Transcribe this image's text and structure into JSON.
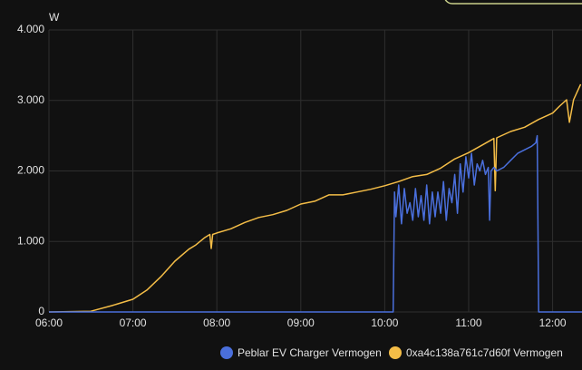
{
  "chart_data": {
    "type": "line",
    "y_unit": "W",
    "xlim": [
      "06:00",
      "12:21"
    ],
    "xticks": [
      "06:00",
      "07:00",
      "08:00",
      "09:00",
      "10:00",
      "11:00",
      "12:00"
    ],
    "ylim": [
      0,
      4000
    ],
    "yticks": [
      0,
      {
        "value": 1000,
        "label": "1.000"
      },
      {
        "value": 2000,
        "label": "2.000"
      },
      {
        "value": 3000,
        "label": "3.000"
      },
      {
        "value": 4000,
        "label": "4.000"
      }
    ],
    "grid": true,
    "legend": "bottom-right",
    "series": [
      {
        "name": "Peblar EV Charger Vermogen",
        "color": "#4a6fdc",
        "x": [
          "06:00",
          "10:06",
          "10:07",
          "10:08",
          "10:10",
          "10:12",
          "10:14",
          "10:16",
          "10:18",
          "10:20",
          "10:22",
          "10:24",
          "10:26",
          "10:28",
          "10:30",
          "10:32",
          "10:34",
          "10:36",
          "10:38",
          "10:40",
          "10:42",
          "10:44",
          "10:46",
          "10:48",
          "10:50",
          "10:52",
          "10:54",
          "10:56",
          "10:58",
          "11:00",
          "11:02",
          "11:04",
          "11:06",
          "11:08",
          "11:10",
          "11:12",
          "11:14",
          "11:15",
          "11:16",
          "11:18",
          "11:20",
          "11:25",
          "11:30",
          "11:35",
          "11:40",
          "11:45",
          "11:48",
          "11:49",
          "11:50",
          "12:21"
        ],
        "values": [
          0,
          0,
          1700,
          1350,
          1800,
          1250,
          1750,
          1400,
          1550,
          1300,
          1750,
          1350,
          1650,
          1300,
          1800,
          1250,
          1700,
          1350,
          1700,
          1400,
          1850,
          1300,
          1750,
          1550,
          1950,
          1400,
          2100,
          1700,
          2200,
          1900,
          2250,
          1800,
          2100,
          2000,
          2150,
          1950,
          2050,
          1300,
          2000,
          2050,
          2000,
          2050,
          2150,
          2250,
          2300,
          2350,
          2400,
          2500,
          0,
          0
        ]
      },
      {
        "name": "0xa4c138a761c7d60f Vermogen",
        "color": "#f4bd47",
        "x": [
          "06:00",
          "06:30",
          "06:45",
          "07:00",
          "07:10",
          "07:20",
          "07:30",
          "07:40",
          "07:45",
          "07:51",
          "07:55",
          "07:56",
          "07:57",
          "08:00",
          "08:10",
          "08:20",
          "08:30",
          "08:40",
          "08:50",
          "09:00",
          "09:10",
          "09:20",
          "09:30",
          "09:40",
          "09:50",
          "10:00",
          "10:10",
          "10:20",
          "10:30",
          "10:40",
          "10:50",
          "11:00",
          "11:10",
          "11:18",
          "11:19",
          "11:20",
          "11:30",
          "11:40",
          "11:50",
          "12:00",
          "12:05",
          "12:10",
          "12:12",
          "12:15",
          "12:20"
        ],
        "values": [
          0,
          10,
          90,
          180,
          310,
          500,
          720,
          890,
          950,
          1050,
          1100,
          900,
          1100,
          1120,
          1180,
          1270,
          1340,
          1380,
          1440,
          1530,
          1570,
          1660,
          1660,
          1700,
          1740,
          1790,
          1850,
          1920,
          1950,
          2040,
          2170,
          2260,
          2370,
          2460,
          1720,
          2470,
          2560,
          2620,
          2730,
          2820,
          2920,
          3010,
          2690,
          3010,
          3230
        ]
      }
    ]
  }
}
